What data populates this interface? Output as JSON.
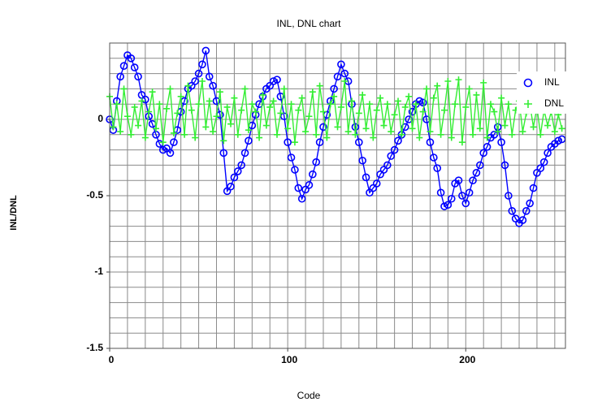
{
  "chart_data": {
    "type": "line",
    "title": "INL, DNL chart",
    "xlabel": "Code",
    "ylabel": "INL/DNL",
    "x": [
      0,
      2,
      4,
      6,
      8,
      10,
      12,
      14,
      16,
      18,
      20,
      22,
      24,
      26,
      28,
      30,
      32,
      34,
      36,
      38,
      40,
      42,
      44,
      46,
      48,
      50,
      52,
      54,
      56,
      58,
      60,
      62,
      64,
      66,
      68,
      70,
      72,
      74,
      76,
      78,
      80,
      82,
      84,
      86,
      88,
      90,
      92,
      94,
      96,
      98,
      100,
      102,
      104,
      106,
      108,
      110,
      112,
      114,
      116,
      118,
      120,
      122,
      124,
      126,
      128,
      130,
      132,
      134,
      136,
      138,
      140,
      142,
      144,
      146,
      148,
      150,
      152,
      154,
      156,
      158,
      160,
      162,
      164,
      166,
      168,
      170,
      172,
      174,
      176,
      178,
      180,
      182,
      184,
      186,
      188,
      190,
      192,
      194,
      196,
      198,
      200,
      202,
      204,
      206,
      208,
      210,
      212,
      214,
      216,
      218,
      220,
      222,
      224,
      226,
      228,
      230,
      232,
      234,
      236,
      238,
      240,
      242,
      244,
      246,
      248,
      250,
      252,
      254
    ],
    "series": [
      {
        "name": "INL",
        "color": "#0000ff",
        "marker": "circle",
        "values": [
          0,
          -0.07,
          0.12,
          0.28,
          0.35,
          0.42,
          0.4,
          0.34,
          0.28,
          0.16,
          0.13,
          0.02,
          -0.03,
          -0.1,
          -0.16,
          -0.2,
          -0.19,
          -0.22,
          -0.15,
          -0.07,
          0.05,
          0.12,
          0.2,
          0.22,
          0.25,
          0.3,
          0.36,
          0.45,
          0.28,
          0.22,
          0.12,
          0.03,
          -0.22,
          -0.47,
          -0.44,
          -0.38,
          -0.34,
          -0.3,
          -0.22,
          -0.14,
          -0.04,
          0.03,
          0.1,
          0.15,
          0.2,
          0.22,
          0.25,
          0.26,
          0.15,
          0.02,
          -0.15,
          -0.25,
          -0.33,
          -0.45,
          -0.52,
          -0.46,
          -0.43,
          -0.36,
          -0.28,
          -0.15,
          -0.05,
          0.03,
          0.12,
          0.2,
          0.28,
          0.36,
          0.3,
          0.25,
          0.1,
          -0.05,
          -0.15,
          -0.27,
          -0.38,
          -0.48,
          -0.45,
          -0.42,
          -0.36,
          -0.33,
          -0.3,
          -0.24,
          -0.2,
          -0.14,
          -0.1,
          -0.05,
          0,
          0.05,
          0.1,
          0.12,
          0.11,
          0,
          -0.15,
          -0.25,
          -0.32,
          -0.48,
          -0.57,
          -0.56,
          -0.52,
          -0.42,
          -0.4,
          -0.5,
          -0.55,
          -0.48,
          -0.4,
          -0.35,
          -0.3,
          -0.22,
          -0.18,
          -0.12,
          -0.1,
          -0.05,
          -0.15,
          -0.3,
          -0.5,
          -0.6,
          -0.65,
          -0.68,
          -0.66,
          -0.6,
          -0.55,
          -0.45,
          -0.35,
          -0.32,
          -0.28,
          -0.22,
          -0.18,
          -0.16,
          -0.14,
          -0.13
        ]
      },
      {
        "name": "DNL",
        "color": "#33ee33",
        "marker": "plus",
        "values": [
          0.15,
          -0.05,
          0.1,
          -0.08,
          0.2,
          0.02,
          -0.1,
          0.08,
          -0.04,
          0.12,
          -0.12,
          0.05,
          0.18,
          -0.06,
          0.1,
          -0.15,
          0.07,
          0.2,
          -0.09,
          0.04,
          0.15,
          -0.1,
          0.22,
          0.06,
          -0.12,
          0.1,
          0.25,
          -0.05,
          0.12,
          -0.08,
          0.02,
          0.18,
          -0.14,
          0.08,
          -0.03,
          0.14,
          -0.1,
          0.06,
          0.2,
          -0.07,
          0.1,
          0.05,
          -0.12,
          0.16,
          -0.04,
          0.08,
          0.12,
          -0.1,
          0.04,
          0.2,
          -0.06,
          0.1,
          -0.15,
          0.06,
          0.14,
          -0.08,
          0.02,
          0.18,
          -0.1,
          0.22,
          0.05,
          -0.12,
          0.1,
          0.15,
          -0.05,
          0.08,
          0.25,
          -0.08,
          0.12,
          -0.1,
          0.04,
          0.16,
          -0.06,
          0.1,
          -0.12,
          0.06,
          0.14,
          -0.04,
          0.1,
          -0.08,
          0.03,
          0.12,
          -0.1,
          0.08,
          0.15,
          -0.06,
          0.1,
          -0.12,
          0.05,
          0.2,
          -0.08,
          0.14,
          0.22,
          -0.1,
          0.06,
          0.25,
          -0.12,
          0.1,
          0.26,
          -0.15,
          0.08,
          0.2,
          -0.1,
          0.16,
          -0.06,
          0.24,
          -0.12,
          0.1,
          0.05,
          -0.08,
          0.14,
          -0.04,
          0.1,
          -0.1,
          0.06,
          0.12,
          -0.08,
          0.04,
          0.1,
          -0.05,
          0.08,
          -0.1,
          0.06,
          -0.04,
          0.05,
          -0.08,
          0.03,
          -0.06
        ]
      }
    ],
    "xlim": [
      0,
      256
    ],
    "ylim": [
      -1.5,
      0.5
    ],
    "xticks": [
      0,
      100,
      200
    ],
    "yticks": [
      0,
      -0.5,
      -1,
      -1.5
    ],
    "xminorticks": [
      0,
      10,
      20,
      30,
      40,
      50,
      60,
      70,
      80,
      90,
      100,
      110,
      120,
      130,
      140,
      150,
      160,
      170,
      180,
      190,
      200,
      210,
      220,
      230,
      240,
      250
    ],
    "yminorticks": [
      -1.5,
      -1.4,
      -1.3,
      -1.2,
      -1.1,
      -1,
      -0.9,
      -0.8,
      -0.7,
      -0.6,
      -0.5,
      -0.4,
      -0.3,
      -0.2,
      -0.1,
      0,
      0.1,
      0.2,
      0.3,
      0.4,
      0.5
    ],
    "grid": true,
    "legend": "upper right"
  }
}
